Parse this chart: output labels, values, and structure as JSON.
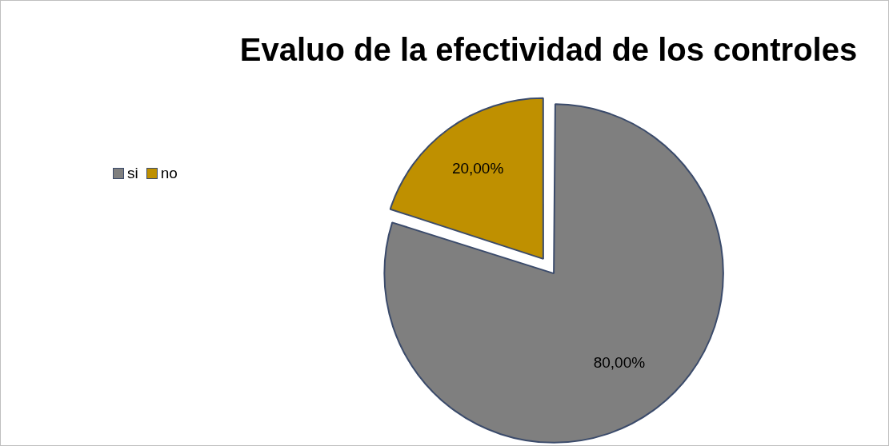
{
  "chart_data": {
    "type": "pie",
    "title": "Evaluo de la efectividad de los controles",
    "categories": [
      "si",
      "no"
    ],
    "values": [
      80,
      20
    ],
    "colors": [
      "#7f7f7f",
      "#bf9000"
    ],
    "value_labels": [
      "80,00%",
      "20,00%"
    ],
    "legend": "top left"
  }
}
